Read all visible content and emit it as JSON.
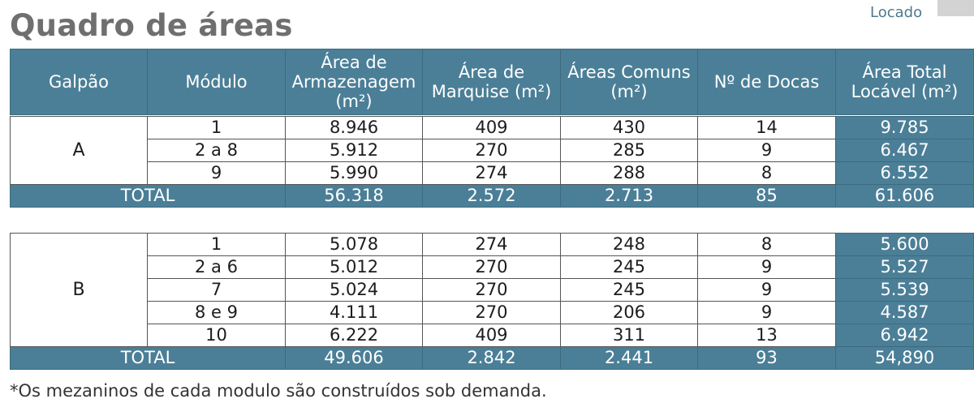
{
  "page": {
    "title": "Quadro de áreas",
    "status_label": "Locado",
    "footnote": "*Os mezaninos de cada modulo são construídos sob demanda."
  },
  "colors": {
    "header_bg": "#4b7f97",
    "header_text": "#ffffff",
    "title_text": "#6f6f6f",
    "status_text": "#4d7a8d",
    "status_swatch": "#d3d3d3"
  },
  "headers": {
    "galpao": "Galpão",
    "modulo": "Módulo",
    "armazenagem": "Área de Armazenagem (m²)",
    "marquise": "Área de Marquise (m²)",
    "comuns": "Áreas Comuns (m²)",
    "docas": "Nº de Docas",
    "total": "Área Total Locável (m²)"
  },
  "galpoes": [
    {
      "name": "A",
      "rows": [
        {
          "modulo": "1",
          "armazenagem": "8.946",
          "marquise": "409",
          "comuns": "430",
          "docas": "14",
          "total": "9.785"
        },
        {
          "modulo": "2 a 8",
          "armazenagem": "5.912",
          "marquise": "270",
          "comuns": "285",
          "docas": "9",
          "total": "6.467"
        },
        {
          "modulo": "9",
          "armazenagem": "5.990",
          "marquise": "274",
          "comuns": "288",
          "docas": "8",
          "total": "6.552"
        }
      ],
      "totals": {
        "label": "TOTAL",
        "armazenagem": "56.318",
        "marquise": "2.572",
        "comuns": "2.713",
        "docas": "85",
        "total": "61.606"
      }
    },
    {
      "name": "B",
      "rows": [
        {
          "modulo": "1",
          "armazenagem": "5.078",
          "marquise": "274",
          "comuns": "248",
          "docas": "8",
          "total": "5.600"
        },
        {
          "modulo": "2 a 6",
          "armazenagem": "5.012",
          "marquise": "270",
          "comuns": "245",
          "docas": "9",
          "total": "5.527"
        },
        {
          "modulo": "7",
          "armazenagem": "5.024",
          "marquise": "270",
          "comuns": "245",
          "docas": "9",
          "total": "5.539"
        },
        {
          "modulo": "8 e 9",
          "armazenagem": "4.111",
          "marquise": "270",
          "comuns": "206",
          "docas": "9",
          "total": "4.587"
        },
        {
          "modulo": "10",
          "armazenagem": "6.222",
          "marquise": "409",
          "comuns": "311",
          "docas": "13",
          "total": "6.942"
        }
      ],
      "totals": {
        "label": "TOTAL",
        "armazenagem": "49.606",
        "marquise": "2.842",
        "comuns": "2.441",
        "docas": "93",
        "total": "54,890"
      }
    }
  ]
}
